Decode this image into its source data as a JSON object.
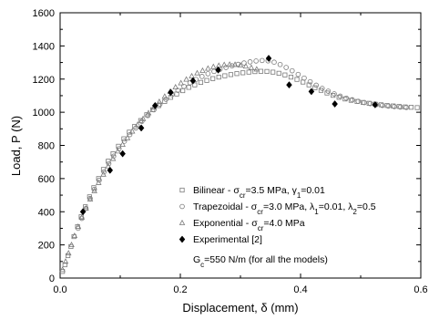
{
  "chart_data": {
    "type": "scatter",
    "xlabel": "Displacement, δ (mm)",
    "ylabel": "Load, P (N)",
    "xlim": [
      0.0,
      0.6
    ],
    "ylim": [
      0,
      1600
    ],
    "x_ticks": [
      "0.0",
      "0.2",
      "0.4",
      "0.6"
    ],
    "x_tick_values": [
      0.0,
      0.2,
      0.4,
      0.6
    ],
    "y_ticks": [
      "0",
      "200",
      "400",
      "600",
      "800",
      "1000",
      "1200",
      "1400",
      "1600"
    ],
    "y_tick_values": [
      0,
      200,
      400,
      600,
      800,
      1000,
      1200,
      1400,
      1600
    ],
    "legend_position": "bottom-right",
    "legend_note": "G c=550 N/m (for all the models)",
    "legend_note_parts": [
      "G",
      "c",
      "=550 N/m (for all the models)"
    ],
    "series": [
      {
        "name": "Bilinear - σcr=3.5 MPa, γ1=0.01",
        "legend_parts": [
          {
            "t": "Bilinear - σ"
          },
          {
            "t": "cr",
            "sub": true
          },
          {
            "t": "=3.5 MPa, γ"
          },
          {
            "t": "1",
            "sub": true
          },
          {
            "t": "=0.01"
          }
        ],
        "marker": "square",
        "color": "#7a7a7a",
        "points": [
          [
            0.004,
            40
          ],
          [
            0.008,
            80
          ],
          [
            0.013,
            135
          ],
          [
            0.018,
            190
          ],
          [
            0.023,
            250
          ],
          [
            0.029,
            310
          ],
          [
            0.035,
            370
          ],
          [
            0.042,
            430
          ],
          [
            0.049,
            490
          ],
          [
            0.056,
            545
          ],
          [
            0.064,
            600
          ],
          [
            0.072,
            655
          ],
          [
            0.08,
            705
          ],
          [
            0.088,
            750
          ],
          [
            0.097,
            795
          ],
          [
            0.106,
            840
          ],
          [
            0.115,
            880
          ],
          [
            0.124,
            915
          ],
          [
            0.134,
            950
          ],
          [
            0.144,
            985
          ],
          [
            0.154,
            1015
          ],
          [
            0.164,
            1040
          ],
          [
            0.174,
            1065
          ],
          [
            0.184,
            1090
          ],
          [
            0.194,
            1110
          ],
          [
            0.204,
            1130
          ],
          [
            0.214,
            1150
          ],
          [
            0.224,
            1165
          ],
          [
            0.234,
            1180
          ],
          [
            0.244,
            1192
          ],
          [
            0.254,
            1203
          ],
          [
            0.264,
            1212
          ],
          [
            0.274,
            1220
          ],
          [
            0.284,
            1227
          ],
          [
            0.294,
            1233
          ],
          [
            0.304,
            1238
          ],
          [
            0.314,
            1242
          ],
          [
            0.324,
            1245
          ],
          [
            0.334,
            1247
          ],
          [
            0.344,
            1246
          ],
          [
            0.354,
            1242
          ],
          [
            0.364,
            1235
          ],
          [
            0.374,
            1225
          ],
          [
            0.384,
            1212
          ],
          [
            0.394,
            1198
          ],
          [
            0.404,
            1182
          ],
          [
            0.414,
            1165
          ],
          [
            0.424,
            1148
          ],
          [
            0.434,
            1132
          ],
          [
            0.444,
            1116
          ],
          [
            0.454,
            1102
          ],
          [
            0.464,
            1090
          ],
          [
            0.474,
            1080
          ],
          [
            0.484,
            1072
          ],
          [
            0.494,
            1065
          ],
          [
            0.504,
            1059
          ],
          [
            0.514,
            1054
          ],
          [
            0.524,
            1049
          ],
          [
            0.534,
            1045
          ],
          [
            0.544,
            1041
          ],
          [
            0.554,
            1038
          ],
          [
            0.564,
            1035
          ],
          [
            0.574,
            1032
          ],
          [
            0.584,
            1030
          ],
          [
            0.594,
            1028
          ]
        ]
      },
      {
        "name": "Trapezoidal - σcr=3.0 MPa, λ1=0.01, λ2=0.5",
        "legend_parts": [
          {
            "t": "Trapezoidal - σ"
          },
          {
            "t": "cr",
            "sub": true
          },
          {
            "t": "=3.0 MPa, λ"
          },
          {
            "t": "1",
            "sub": true
          },
          {
            "t": "=0.01, λ"
          },
          {
            "t": "2",
            "sub": true
          },
          {
            "t": "=0.5"
          }
        ],
        "marker": "circle",
        "color": "#7a7a7a",
        "points": [
          [
            0.03,
            300
          ],
          [
            0.036,
            360
          ],
          [
            0.043,
            420
          ],
          [
            0.05,
            480
          ],
          [
            0.057,
            535
          ],
          [
            0.065,
            590
          ],
          [
            0.073,
            640
          ],
          [
            0.081,
            690
          ],
          [
            0.089,
            735
          ],
          [
            0.098,
            780
          ],
          [
            0.107,
            825
          ],
          [
            0.116,
            865
          ],
          [
            0.126,
            905
          ],
          [
            0.136,
            945
          ],
          [
            0.146,
            980
          ],
          [
            0.156,
            1015
          ],
          [
            0.166,
            1048
          ],
          [
            0.176,
            1078
          ],
          [
            0.186,
            1106
          ],
          [
            0.196,
            1132
          ],
          [
            0.206,
            1156
          ],
          [
            0.216,
            1178
          ],
          [
            0.226,
            1198
          ],
          [
            0.236,
            1216
          ],
          [
            0.246,
            1232
          ],
          [
            0.256,
            1246
          ],
          [
            0.266,
            1259
          ],
          [
            0.276,
            1270
          ],
          [
            0.286,
            1280
          ],
          [
            0.296,
            1289
          ],
          [
            0.306,
            1297
          ],
          [
            0.316,
            1304
          ],
          [
            0.326,
            1309
          ],
          [
            0.336,
            1312
          ],
          [
            0.346,
            1310
          ],
          [
            0.356,
            1302
          ],
          [
            0.366,
            1288
          ],
          [
            0.376,
            1270
          ],
          [
            0.386,
            1250
          ],
          [
            0.396,
            1228
          ],
          [
            0.406,
            1206
          ],
          [
            0.416,
            1184
          ],
          [
            0.426,
            1163
          ],
          [
            0.436,
            1144
          ],
          [
            0.446,
            1127
          ],
          [
            0.456,
            1111
          ],
          [
            0.466,
            1097
          ],
          [
            0.476,
            1085
          ],
          [
            0.486,
            1075
          ],
          [
            0.496,
            1066
          ],
          [
            0.506,
            1058
          ],
          [
            0.516,
            1052
          ],
          [
            0.526,
            1046
          ],
          [
            0.536,
            1041
          ],
          [
            0.546,
            1037
          ],
          [
            0.556,
            1034
          ],
          [
            0.566,
            1031
          ],
          [
            0.576,
            1029
          ]
        ]
      },
      {
        "name": "Exponential - σcr=4.0 MPa",
        "legend_parts": [
          {
            "t": "Exponential - σ"
          },
          {
            "t": "cr",
            "sub": true
          },
          {
            "t": "=4.0 MPa"
          }
        ],
        "marker": "triangle",
        "color": "#7a7a7a",
        "points": [
          [
            0.004,
            50
          ],
          [
            0.009,
            100
          ],
          [
            0.014,
            150
          ],
          [
            0.019,
            200
          ],
          [
            0.024,
            255
          ],
          [
            0.03,
            310
          ],
          [
            0.036,
            365
          ],
          [
            0.043,
            420
          ],
          [
            0.05,
            475
          ],
          [
            0.057,
            525
          ],
          [
            0.064,
            575
          ],
          [
            0.072,
            625
          ],
          [
            0.08,
            675
          ],
          [
            0.088,
            720
          ],
          [
            0.096,
            765
          ],
          [
            0.104,
            805
          ],
          [
            0.112,
            845
          ],
          [
            0.12,
            885
          ],
          [
            0.129,
            925
          ],
          [
            0.138,
            960
          ],
          [
            0.147,
            995
          ],
          [
            0.156,
            1030
          ],
          [
            0.165,
            1063
          ],
          [
            0.174,
            1095
          ],
          [
            0.183,
            1124
          ],
          [
            0.192,
            1151
          ],
          [
            0.201,
            1176
          ],
          [
            0.21,
            1198
          ],
          [
            0.219,
            1218
          ],
          [
            0.228,
            1236
          ],
          [
            0.237,
            1251
          ],
          [
            0.246,
            1264
          ],
          [
            0.255,
            1274
          ],
          [
            0.264,
            1281
          ],
          [
            0.273,
            1286
          ],
          [
            0.282,
            1288
          ],
          [
            0.291,
            1287
          ],
          [
            0.3,
            1283
          ],
          [
            0.309,
            1277
          ],
          [
            0.318,
            1269
          ],
          [
            0.327,
            1259
          ]
        ]
      },
      {
        "name": "Experimental [2]",
        "legend_parts": [
          {
            "t": "Experimental [2]"
          }
        ],
        "marker": "diamond",
        "color": "#000000",
        "points": [
          [
            0.038,
            400
          ],
          [
            0.083,
            650
          ],
          [
            0.104,
            750
          ],
          [
            0.135,
            905
          ],
          [
            0.158,
            1040
          ],
          [
            0.184,
            1120
          ],
          [
            0.221,
            1190
          ],
          [
            0.263,
            1255
          ],
          [
            0.347,
            1325
          ],
          [
            0.381,
            1165
          ],
          [
            0.418,
            1125
          ],
          [
            0.457,
            1050
          ],
          [
            0.524,
            1045
          ]
        ]
      }
    ]
  }
}
